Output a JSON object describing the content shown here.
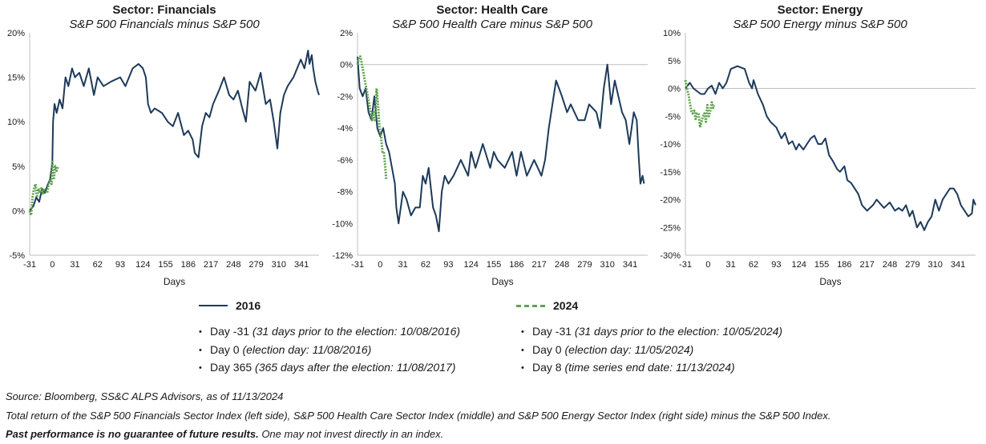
{
  "chart_data": [
    {
      "type": "line",
      "title": "Sector: Financials",
      "subtitle": "S&P 500 Financials minus S&P 500",
      "xlabel": "Days",
      "xlim": [
        -31,
        365
      ],
      "xticks": [
        "-31",
        "0",
        "31",
        "62",
        "93",
        "124",
        "155",
        "186",
        "217",
        "248",
        "279",
        "310",
        "341"
      ],
      "ylim": [
        -5,
        20
      ],
      "yticks": [
        "20%",
        "15%",
        "10%",
        "5%",
        "0%",
        "-5%"
      ],
      "zero_line": false,
      "series": [
        {
          "name": "2016",
          "color": "#1d3a5a",
          "style": "solid",
          "x": [
            -31,
            -26,
            -22,
            -18,
            -14,
            -10,
            -6,
            -3,
            0,
            1,
            3,
            6,
            10,
            14,
            18,
            22,
            27,
            31,
            37,
            43,
            50,
            57,
            62,
            70,
            80,
            93,
            100,
            110,
            118,
            124,
            128,
            131,
            135,
            140,
            150,
            158,
            165,
            172,
            180,
            186,
            192,
            195,
            200,
            205,
            210,
            215,
            220,
            228,
            235,
            242,
            248,
            254,
            260,
            265,
            270,
            278,
            285,
            292,
            298,
            303,
            308,
            312,
            317,
            322,
            330,
            340,
            345,
            350,
            352,
            355,
            357,
            360,
            363,
            365
          ],
          "y": [
            0,
            0.5,
            1.5,
            1.0,
            2.5,
            2.0,
            3.0,
            3.5,
            5.5,
            10,
            12,
            11,
            12.5,
            11.5,
            15,
            14,
            16,
            15,
            15.5,
            14,
            16,
            13,
            15,
            14,
            14.5,
            15,
            14,
            16,
            16.5,
            16,
            15,
            12,
            11,
            11.5,
            11,
            10,
            9.5,
            11,
            8.5,
            9,
            8,
            6.5,
            6,
            9.5,
            11,
            10.5,
            12,
            13.5,
            15,
            13,
            12.5,
            13.5,
            11.5,
            10,
            14.5,
            13.5,
            15.5,
            12,
            12.5,
            10,
            7,
            11,
            13,
            14,
            15,
            17,
            16,
            18,
            16.5,
            17.5,
            16,
            14.5,
            13.5,
            13
          ]
        },
        {
          "name": "2024",
          "color": "#5fa34f",
          "style": "dashed",
          "x": [
            -31,
            -29,
            -27,
            -25,
            -23,
            -21,
            -19,
            -17,
            -15,
            -13,
            -11,
            -9,
            -7,
            -5,
            -3,
            -1,
            0,
            2,
            4,
            6,
            8
          ],
          "y": [
            0,
            -0.5,
            1.5,
            2.5,
            3,
            1.5,
            2.5,
            2.0,
            2.5,
            1.8,
            2.5,
            2.2,
            2.0,
            3.0,
            3.5,
            3.0,
            5.5,
            3.5,
            5.0,
            4.5,
            5.0
          ]
        }
      ]
    },
    {
      "type": "line",
      "title": "Sector: Health Care",
      "subtitle": "S&P 500 Health Care minus S&P 500",
      "xlabel": "Days",
      "xlim": [
        -31,
        365
      ],
      "xticks": [
        "-31",
        "0",
        "31",
        "62",
        "93",
        "124",
        "155",
        "186",
        "217",
        "248",
        "279",
        "310",
        "341"
      ],
      "ylim": [
        -12,
        2
      ],
      "yticks": [
        "2%",
        "0%",
        "-2%",
        "-4%",
        "-6%",
        "-8%",
        "-10%",
        "-12%"
      ],
      "zero_line": true,
      "series": [
        {
          "name": "2016",
          "color": "#1d3a5a",
          "style": "solid",
          "x": [
            -31,
            -28,
            -24,
            -20,
            -16,
            -12,
            -8,
            -4,
            0,
            4,
            8,
            12,
            16,
            20,
            22,
            25,
            28,
            31,
            36,
            42,
            48,
            54,
            58,
            62,
            66,
            72,
            76,
            80,
            84,
            88,
            93,
            100,
            110,
            120,
            124,
            130,
            140,
            150,
            155,
            160,
            170,
            180,
            186,
            192,
            200,
            210,
            215,
            220,
            225,
            230,
            240,
            248,
            255,
            260,
            270,
            279,
            285,
            295,
            300,
            305,
            310,
            315,
            320,
            325,
            330,
            335,
            340,
            343,
            346,
            350,
            353,
            355,
            358,
            360
          ],
          "y": [
            0.5,
            -1.5,
            -2,
            -1.5,
            -3,
            -3.5,
            -2,
            -4,
            -4.5,
            -4,
            -5,
            -5.5,
            -6.5,
            -7.5,
            -9,
            -10,
            -9,
            -8,
            -8.5,
            -9.5,
            -9,
            -9,
            -7,
            -7.5,
            -6.5,
            -9,
            -9.5,
            -10.5,
            -8,
            -7,
            -7.5,
            -7,
            -6,
            -7,
            -5.5,
            -6.5,
            -5,
            -6.5,
            -5.5,
            -6,
            -6.5,
            -5.5,
            -7,
            -5.5,
            -7,
            -6,
            -6.5,
            -7,
            -6,
            -4,
            -1,
            -2,
            -3,
            -2.5,
            -3.5,
            -3.5,
            -2.5,
            -3,
            -4,
            -1.5,
            0,
            -2.5,
            -1,
            -2,
            -3,
            -3.5,
            -5,
            -4,
            -3,
            -3.5,
            -6,
            -7.5,
            -7,
            -7.5
          ]
        },
        {
          "name": "2024",
          "color": "#5fa34f",
          "style": "dashed",
          "x": [
            -31,
            -29,
            -27,
            -25,
            -23,
            -21,
            -19,
            -17,
            -15,
            -13,
            -11,
            -9,
            -7,
            -5,
            -3,
            -1,
            1,
            3,
            5,
            7,
            8
          ],
          "y": [
            0,
            0.5,
            0.5,
            0,
            -0.5,
            -1,
            -1.5,
            -2,
            -2.5,
            -3,
            -3.5,
            -3,
            -3.5,
            -1.5,
            -2.5,
            -4,
            -4.5,
            -5.5,
            -5.5,
            -6.5,
            -7.2
          ]
        }
      ]
    },
    {
      "type": "line",
      "title": "Sector: Energy",
      "subtitle": "S&P 500 Energy minus S&P 500",
      "xlabel": "Days",
      "xlim": [
        -31,
        365
      ],
      "xticks": [
        "-31",
        "0",
        "31",
        "62",
        "93",
        "124",
        "155",
        "186",
        "217",
        "248",
        "279",
        "310",
        "341"
      ],
      "ylim": [
        -30,
        10
      ],
      "yticks": [
        "10%",
        "5%",
        "0%",
        "-5%",
        "-10%",
        "-15%",
        "-20%",
        "-25%",
        "-30%"
      ],
      "zero_line": true,
      "series": [
        {
          "name": "2016",
          "color": "#1d3a5a",
          "style": "solid",
          "x": [
            -31,
            -25,
            -20,
            -15,
            -10,
            -5,
            0,
            5,
            10,
            15,
            20,
            25,
            31,
            40,
            50,
            56,
            60,
            62,
            68,
            75,
            80,
            85,
            93,
            100,
            105,
            110,
            115,
            120,
            124,
            130,
            135,
            140,
            145,
            150,
            155,
            160,
            165,
            170,
            176,
            180,
            186,
            190,
            195,
            200,
            205,
            210,
            217,
            225,
            230,
            240,
            248,
            255,
            260,
            265,
            270,
            275,
            279,
            285,
            290,
            295,
            300,
            305,
            310,
            315,
            320,
            325,
            330,
            335,
            340,
            345,
            350,
            355,
            360,
            362,
            365
          ],
          "y": [
            0,
            1,
            0,
            -0.5,
            -1,
            -1,
            0,
            0.5,
            -1,
            1,
            0,
            1,
            3.5,
            4,
            3.5,
            1,
            0,
            1.5,
            -1,
            -3,
            -5,
            -6,
            -7,
            -9,
            -8,
            -10,
            -9.5,
            -11,
            -10,
            -11,
            -10,
            -9,
            -8.5,
            -10,
            -10,
            -9,
            -12,
            -13,
            -14.5,
            -15,
            -14,
            -16.5,
            -17,
            -18,
            -19,
            -21,
            -22,
            -21,
            -20,
            -21.5,
            -20.5,
            -22,
            -21.5,
            -22,
            -21,
            -23,
            -22,
            -25,
            -24,
            -25.5,
            -24,
            -23,
            -20,
            -22,
            -20,
            -19,
            -18,
            -18,
            -19,
            -21,
            -22,
            -23,
            -22.5,
            -20,
            -21
          ]
        },
        {
          "name": "2024",
          "color": "#5fa34f",
          "style": "dashed",
          "x": [
            -31,
            -29,
            -27,
            -25,
            -23,
            -21,
            -19,
            -17,
            -15,
            -13,
            -11,
            -9,
            -7,
            -5,
            -3,
            -1,
            1,
            3,
            5,
            7,
            8
          ],
          "y": [
            1.5,
            0,
            -1,
            -2.5,
            -4,
            -4.5,
            -4,
            -5.5,
            -4.5,
            -4.5,
            -7,
            -6,
            -5,
            -4.5,
            -6,
            -3,
            -5,
            -4,
            -2.5,
            -3.5,
            -3
          ]
        }
      ]
    }
  ],
  "legend": {
    "s2016": "2016",
    "s2024": "2024"
  },
  "notes_2016": [
    {
      "day": "Day -31",
      "detail": "(31 days prior to the election: 10/08/2016)"
    },
    {
      "day": "Day 0",
      "detail": "(election day: 11/08/2016)"
    },
    {
      "day": "Day 365",
      "detail": "(365 days after the election: 11/08/2017)"
    }
  ],
  "notes_2024": [
    {
      "day": "Day -31",
      "detail": "(31 days prior to the election: 10/05/2024)"
    },
    {
      "day": "Day 0",
      "detail": "(election day: 11/05/2024)"
    },
    {
      "day": "Day 8",
      "detail": "(time series end date: 11/13/2024)"
    }
  ],
  "footer": {
    "source": "Source: Bloomberg, SS&C ALPS Advisors, as of 11/13/2024",
    "total_return": "Total return of the S&P 500 Financials Sector Index (left side), S&P 500 Health Care Sector Index (middle) and S&P 500 Energy Sector Index (right side) minus the S&P 500 Index.",
    "disclaimer_bold": "Past performance is no guarantee of future results.",
    "disclaimer_rest": " One may not invest directly in an index."
  }
}
